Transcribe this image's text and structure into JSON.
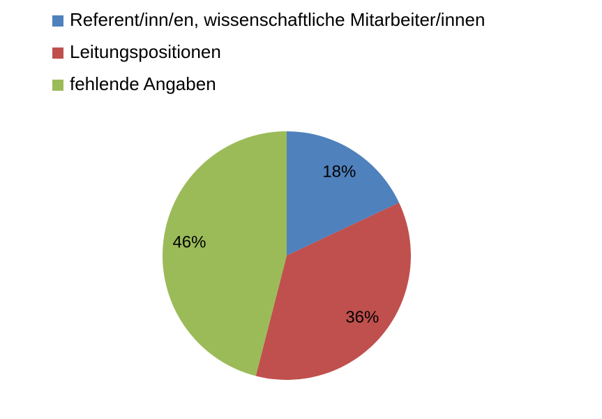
{
  "chart_data": {
    "type": "pie",
    "categories": [
      "Referent/inn/en, wissenschaftliche Mitarbeiter/innen",
      "Leitungspositionen",
      "fehlende Angaben"
    ],
    "values": [
      18,
      36,
      46
    ],
    "value_labels": [
      "18%",
      "36%",
      "46%"
    ],
    "colors": [
      "#4f81bd",
      "#c0504d",
      "#9bbb59"
    ],
    "legend": "top-left"
  }
}
